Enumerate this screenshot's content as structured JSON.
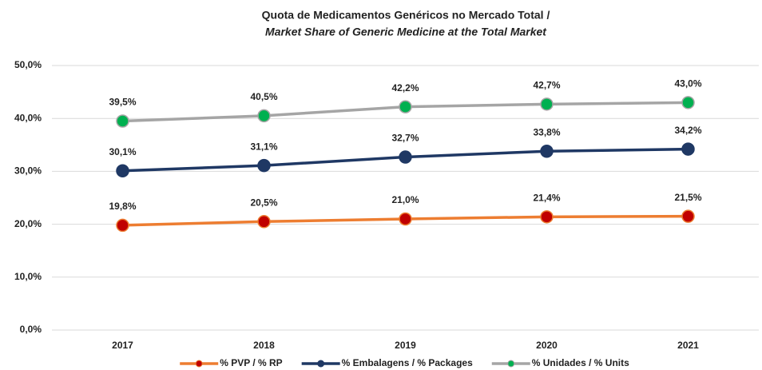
{
  "chart_data": {
    "type": "line",
    "title": "Quota de Medicamentos Genéricos no Mercado Total /",
    "subtitle": "Market Share of Generic Medicine at the Total Market",
    "categories": [
      "2017",
      "2018",
      "2019",
      "2020",
      "2021"
    ],
    "series": [
      {
        "name": "% PVP / % RP",
        "color": "#ED7D31",
        "marker_color": "#C00000",
        "values": [
          19.8,
          20.5,
          21.0,
          21.4,
          21.5
        ],
        "value_labels": [
          "19,8%",
          "20,5%",
          "21,0%",
          "21,4%",
          "21,5%"
        ]
      },
      {
        "name": "% Embalagens / % Packages",
        "color": "#1F3864",
        "marker_color": "#1F3864",
        "values": [
          30.1,
          31.1,
          32.7,
          33.8,
          34.2
        ],
        "value_labels": [
          "30,1%",
          "31,1%",
          "32,7%",
          "33,8%",
          "34,2%"
        ]
      },
      {
        "name": "% Unidades / % Units",
        "color": "#A5A5A5",
        "marker_color": "#00B050",
        "values": [
          39.5,
          40.5,
          42.2,
          42.7,
          43.0
        ],
        "value_labels": [
          "39,5%",
          "40,5%",
          "42,2%",
          "42,7%",
          "43,0%"
        ]
      }
    ],
    "ylim": [
      0,
      50
    ],
    "yticks": [
      {
        "value": 0,
        "label": "0,0%"
      },
      {
        "value": 10,
        "label": "10,0%"
      },
      {
        "value": 20,
        "label": "20,0%"
      },
      {
        "value": 30,
        "label": "30,0%"
      },
      {
        "value": 40,
        "label": "40,0%"
      },
      {
        "value": 50,
        "label": "50,0%"
      }
    ],
    "grid": true,
    "legend": "bottom"
  }
}
